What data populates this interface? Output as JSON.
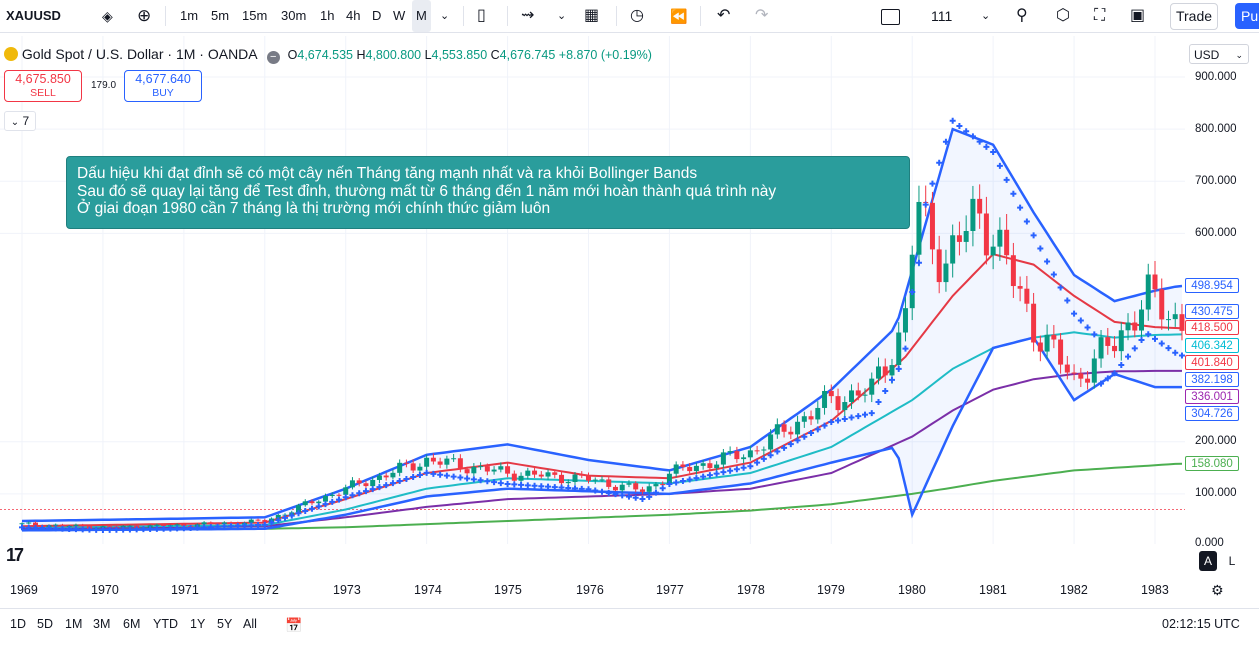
{
  "toolbar": {
    "symbol": "XAUUSD",
    "intervals": [
      "1m",
      "5m",
      "15m",
      "30m",
      "1h",
      "4h",
      "D",
      "W",
      "M"
    ],
    "active_interval": "M",
    "value_field": "111",
    "trade_label": "Trade",
    "publish_label": "Pu"
  },
  "legend": {
    "title": "Gold Spot / U.S. Dollar · 1M · OANDA",
    "o_label": "O",
    "o_value": "4,674.535",
    "h_label": "H",
    "h_value": "4,800.800",
    "l_label": "L",
    "l_value": "4,553.850",
    "c_label": "C",
    "c_value": "4,676.745",
    "change": "+8.870 (+0.19%)"
  },
  "order": {
    "sell_price": "4,675.850",
    "sell_label": "SELL",
    "spread": "179.0",
    "buy_price": "4,677.640",
    "buy_label": "BUY",
    "collapse_label": "7"
  },
  "note": {
    "line1": "Dấu hiệu khi đạt đỉnh sẽ có một cây nến Tháng tăng mạnh nhất và ra khỏi Bollinger Bands",
    "line2": "Sau đó sẽ quay lại tăng để Test đỉnh, thường mất từ 6 tháng đến 1 năm mới hoàn thành quá trình này",
    "line3": "Ở giai đoạn 1980 cần 7 tháng là thị trường mới chính thức giảm luôn"
  },
  "price_axis": {
    "currency": "USD",
    "ticks": [
      "900.000",
      "800.000",
      "700.000",
      "600.000",
      "200.000",
      "100.000",
      "0.000"
    ],
    "labels": [
      {
        "text": "498.954",
        "color": "#2962ff"
      },
      {
        "text": "430.475",
        "color": "#2962ff"
      },
      {
        "text": "418.500",
        "color": "#f23645"
      },
      {
        "text": "406.342",
        "color": "#00bcd4"
      },
      {
        "text": "401.840",
        "color": "#f23645"
      },
      {
        "text": "382.198",
        "color": "#2962ff"
      },
      {
        "text": "336.001",
        "color": "#9c27b0"
      },
      {
        "text": "304.726",
        "color": "#2962ff"
      },
      {
        "text": "158.080",
        "color": "#4caf50"
      }
    ]
  },
  "time_axis": [
    "1969",
    "1970",
    "1971",
    "1972",
    "1973",
    "1974",
    "1975",
    "1976",
    "1977",
    "1978",
    "1979",
    "1980",
    "1981",
    "1982",
    "1983"
  ],
  "bottom": {
    "ranges": [
      "1D",
      "5D",
      "1M",
      "3M",
      "6M",
      "YTD",
      "1Y",
      "5Y",
      "All"
    ],
    "clock": "02:12:15 UTC",
    "scale_a": "A",
    "scale_l": "L"
  },
  "colors": {
    "up": "#089981",
    "down": "#f23645",
    "bb": "#2962ff",
    "ema_red": "#e53945",
    "ema_cyan": "#1fbcc6",
    "ema_purple": "#7b2fa8",
    "ema_green": "#4caf50",
    "sar": "#2962ff"
  },
  "chart_data": {
    "type": "candlestick",
    "title": "Gold Spot / U.S. Dollar · 1M · OANDA",
    "x_range": [
      1969,
      1983.4
    ],
    "ylim": [
      0,
      900
    ],
    "series": [
      {
        "name": "price_close",
        "x": [
          1969,
          1970,
          1971,
          1972,
          1973,
          1974,
          1975,
          1976,
          1976.7,
          1977,
          1978,
          1979,
          1979.5,
          1979.9,
          1980.05,
          1980.4,
          1980.8,
          1981,
          1981.5,
          1982,
          1982.5,
          1982.9,
          1983.3
        ],
        "values": [
          42,
          36,
          40,
          48,
          110,
          165,
          140,
          128,
          105,
          140,
          180,
          280,
          300,
          420,
          650,
          540,
          640,
          600,
          420,
          320,
          390,
          480,
          430
        ]
      },
      {
        "name": "bb_upper",
        "x": [
          1969,
          1972,
          1973,
          1974,
          1975,
          1976,
          1977,
          1978,
          1979,
          1979.8,
          1980.5,
          1981,
          1981.5,
          1982,
          1982.5,
          1983,
          1983.3
        ],
        "values": [
          48,
          55,
          110,
          175,
          195,
          165,
          145,
          190,
          300,
          420,
          800,
          770,
          640,
          520,
          470,
          490,
          499
        ]
      },
      {
        "name": "bb_lower",
        "x": [
          1969,
          1972,
          1973,
          1974,
          1975,
          1976,
          1977,
          1978,
          1979,
          1979.8,
          1980,
          1980.5,
          1981,
          1981.5,
          1982,
          1982.5,
          1983,
          1983.3
        ],
        "values": [
          30,
          33,
          60,
          95,
          110,
          105,
          100,
          120,
          160,
          190,
          60,
          230,
          380,
          400,
          280,
          330,
          305,
          305
        ]
      },
      {
        "name": "ema_red",
        "x": [
          1969,
          1972,
          1973,
          1974,
          1975,
          1976,
          1977,
          1978,
          1979,
          1979.9,
          1980.5,
          1981,
          1981.5,
          1982,
          1982.5,
          1983,
          1983.3
        ],
        "values": [
          38,
          45,
          90,
          140,
          160,
          135,
          130,
          160,
          240,
          360,
          480,
          560,
          540,
          480,
          430,
          420,
          418
        ]
      },
      {
        "name": "ema_cyan",
        "x": [
          1969,
          1972,
          1973,
          1974,
          1975,
          1976,
          1977,
          1978,
          1979,
          1980,
          1980.5,
          1981,
          1981.5,
          1982,
          1982.5,
          1983,
          1983.3
        ],
        "values": [
          36,
          40,
          70,
          110,
          130,
          125,
          120,
          140,
          190,
          280,
          340,
          380,
          400,
          410,
          400,
          405,
          406
        ]
      },
      {
        "name": "ema_purple",
        "x": [
          1969,
          1972,
          1973,
          1974,
          1975,
          1976,
          1977,
          1978,
          1979,
          1980,
          1980.5,
          1981,
          1981.5,
          1982,
          1982.5,
          1983,
          1983.3
        ],
        "values": [
          34,
          38,
          55,
          75,
          90,
          95,
          100,
          110,
          140,
          210,
          260,
          300,
          320,
          330,
          335,
          336,
          336
        ]
      },
      {
        "name": "ema_green",
        "x": [
          1969,
          1972,
          1973,
          1974,
          1975,
          1976,
          1977,
          1978,
          1979,
          1980,
          1980.5,
          1981,
          1981.5,
          1982,
          1982.5,
          1983,
          1983.3
        ],
        "values": [
          33,
          33,
          36,
          42,
          48,
          54,
          60,
          68,
          80,
          100,
          112,
          125,
          135,
          145,
          150,
          155,
          158
        ]
      }
    ]
  }
}
